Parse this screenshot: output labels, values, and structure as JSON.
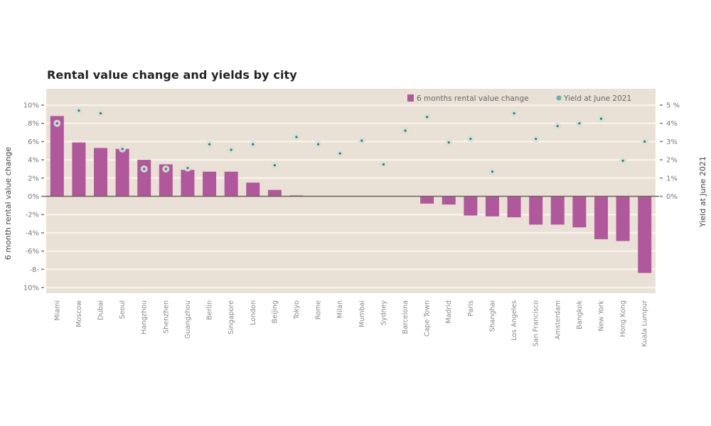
{
  "chart_data": {
    "type": "bar",
    "title": "Rental value change and yields by city",
    "xlabel": "",
    "ylabel": "6 month rental value change",
    "y2label": "Yield at June 2021",
    "ylim": [
      -10,
      10
    ],
    "y2lim": [
      0,
      5
    ],
    "yticks": [
      "10%",
      "8%",
      "6%",
      "4%",
      "2%",
      "0%",
      "-2%",
      "-4%",
      "-6%",
      "-8-",
      "10%"
    ],
    "ytick_values": [
      10,
      8,
      6,
      4,
      2,
      0,
      -2,
      -4,
      -6,
      -8,
      -10
    ],
    "y2ticks": [
      "5 %",
      "4%",
      "3%",
      "2%",
      "1%",
      "0%"
    ],
    "y2tick_values": [
      5,
      4,
      3,
      2,
      1,
      0
    ],
    "grid": true,
    "legend_position": "top-right",
    "categories": [
      "Miami",
      "Moscow",
      "Dubai",
      "Seoul",
      "Hangzhou",
      "Shenzhen",
      "Guangzhou",
      "Berlin",
      "Singapore",
      "London",
      "Beijing",
      "Tokyo",
      "Rome",
      "Milan",
      "Mumbai",
      "Sydney",
      "Barcelona",
      "Cape Town",
      "Madrid",
      "Paris",
      "Shanghai",
      "Los Angeles",
      "San Francisco",
      "Amsterdam",
      "Bangkok",
      "New York",
      "Hong Kong",
      "Kuala Lumpur"
    ],
    "series": [
      {
        "name": "6 months rental value change",
        "type": "bar",
        "axis": "left",
        "color": "#b0589b",
        "values": [
          8.8,
          5.9,
          5.3,
          5.2,
          4.0,
          3.5,
          2.9,
          2.7,
          2.7,
          1.5,
          0.7,
          0.1,
          0,
          0,
          0,
          0,
          0,
          -0.8,
          -0.9,
          -2.1,
          -2.2,
          -2.3,
          -3.1,
          -3.1,
          -3.4,
          -4.7,
          -4.9,
          -8.4
        ]
      },
      {
        "name": "Yield at June 2021",
        "type": "scatter",
        "axis": "right",
        "color": "#5fb3ae",
        "values": [
          4.0,
          4.7,
          4.55,
          2.6,
          1.5,
          1.5,
          1.55,
          2.85,
          2.55,
          2.85,
          1.7,
          3.25,
          2.85,
          2.35,
          3.05,
          1.75,
          3.6,
          4.35,
          2.95,
          3.15,
          1.35,
          4.55,
          3.15,
          3.85,
          4.0,
          4.25,
          1.95,
          3.0
        ]
      }
    ]
  },
  "colors": {
    "plot_background": "#e9e1d5",
    "gridline": "#f7f1e8",
    "zero_line": "#6b6257",
    "bar": "#b0589b",
    "dot": "#5fb3ae"
  }
}
